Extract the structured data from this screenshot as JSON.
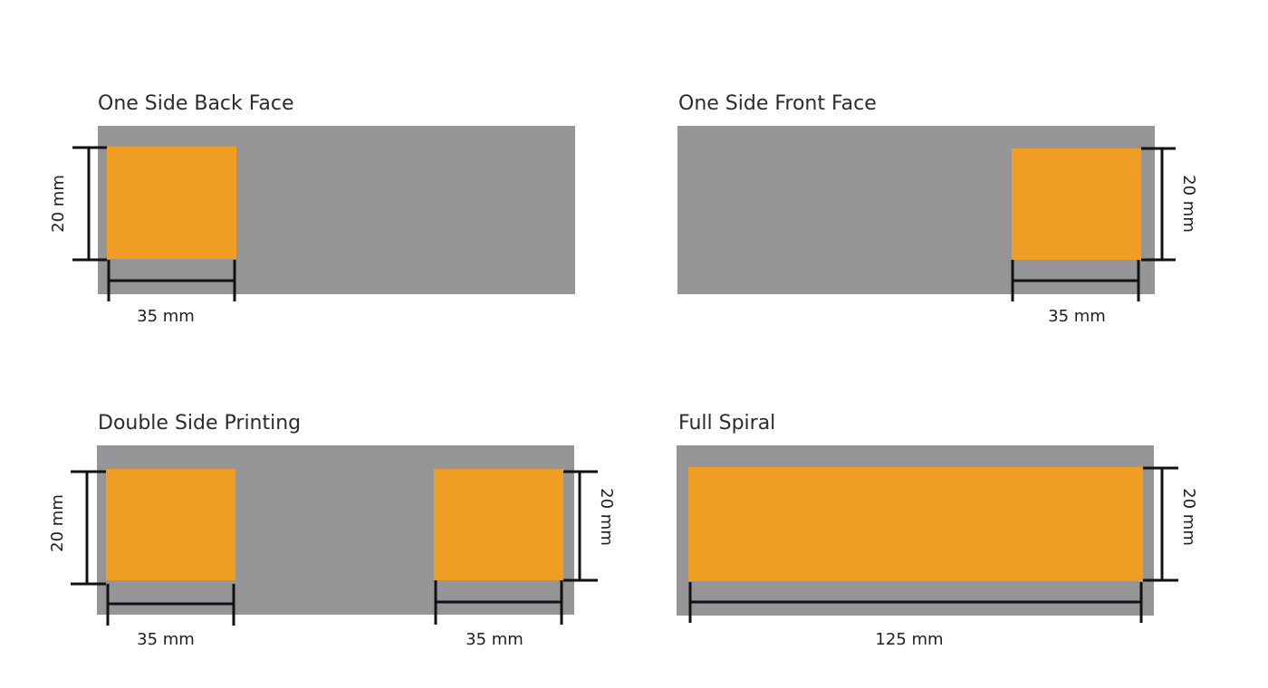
{
  "panels": [
    {
      "title": "One Side Back Face",
      "dimensions": [
        "20 mm",
        "35 mm"
      ]
    },
    {
      "title": "One Side Front Face",
      "dimensions": [
        "20 mm",
        "35 mm"
      ]
    },
    {
      "title": "Double Side Printing",
      "dimensions": [
        "20 mm",
        "35 mm",
        "20 mm",
        "35 mm"
      ]
    },
    {
      "title": "Full Spiral",
      "dimensions": [
        "20 mm",
        "125 mm"
      ]
    }
  ]
}
